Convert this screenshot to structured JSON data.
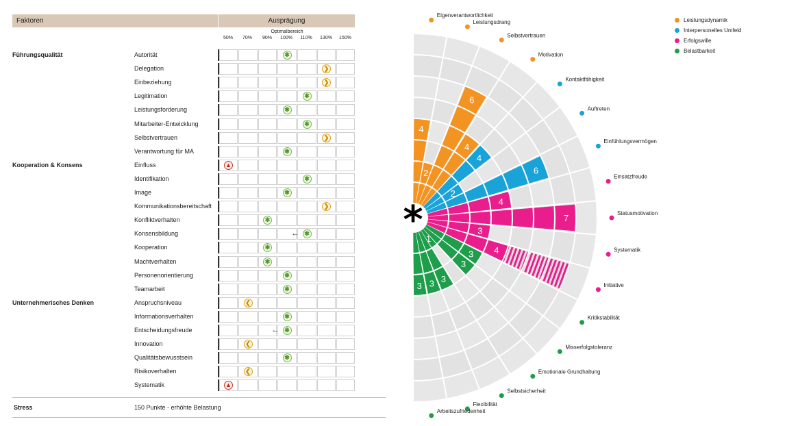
{
  "table": {
    "header_left": "Faktoren",
    "header_right": "Ausprägung",
    "optimal_label": "Optimalbereich",
    "ticks": [
      "50%",
      "70%",
      "90%",
      "100%",
      "110%",
      "130%",
      "150%"
    ],
    "rows": [
      {
        "group": "Führungsqualität",
        "factor": "Autorität",
        "column": 4,
        "marker": "star",
        "arrow": ""
      },
      {
        "group": "",
        "factor": "Delegation",
        "column": 6,
        "marker": "right",
        "arrow": ""
      },
      {
        "group": "",
        "factor": "Einbeziehung",
        "column": 6,
        "marker": "right",
        "arrow": ""
      },
      {
        "group": "",
        "factor": "Legitimation",
        "column": 5,
        "marker": "star",
        "arrow": ""
      },
      {
        "group": "",
        "factor": "Leistungsforderung",
        "column": 4,
        "marker": "star",
        "arrow": ""
      },
      {
        "group": "",
        "factor": "Mitarbeiter-Entwicklung",
        "column": 5,
        "marker": "star",
        "arrow": ""
      },
      {
        "group": "",
        "factor": "Selbstvertrauen",
        "column": 6,
        "marker": "right",
        "arrow": ""
      },
      {
        "group": "",
        "factor": "Verantwortung für MA",
        "column": 4,
        "marker": "star",
        "arrow": ""
      },
      {
        "group": "Kooperation & Konsens",
        "factor": "Einfluss",
        "column": 1,
        "marker": "up",
        "arrow": ""
      },
      {
        "group": "",
        "factor": "Identifikation",
        "column": 5,
        "marker": "star",
        "arrow": ""
      },
      {
        "group": "",
        "factor": "Image",
        "column": 4,
        "marker": "star",
        "arrow": ""
      },
      {
        "group": "",
        "factor": "Kommunikationsbereitschaft",
        "column": 6,
        "marker": "right",
        "arrow": ""
      },
      {
        "group": "",
        "factor": "Konfliktverhalten",
        "column": 3,
        "marker": "star",
        "arrow": ""
      },
      {
        "group": "",
        "factor": "Konsensbildung",
        "column": 5,
        "marker": "star",
        "arrow": "←"
      },
      {
        "group": "",
        "factor": "Kooperation",
        "column": 3,
        "marker": "star",
        "arrow": ""
      },
      {
        "group": "",
        "factor": "Machtverhalten",
        "column": 3,
        "marker": "star",
        "arrow": ""
      },
      {
        "group": "",
        "factor": "Personenorientierung",
        "column": 4,
        "marker": "star",
        "arrow": ""
      },
      {
        "group": "",
        "factor": "Teamarbeit",
        "column": 4,
        "marker": "star",
        "arrow": ""
      },
      {
        "group": "Unternehmerisches Denken",
        "factor": "Anspruchsniveau",
        "column": 2,
        "marker": "left",
        "arrow": ""
      },
      {
        "group": "",
        "factor": "Informationsverhalten",
        "column": 4,
        "marker": "star",
        "arrow": ""
      },
      {
        "group": "",
        "factor": "Entscheidungsfreude",
        "column": 4,
        "marker": "star",
        "arrow": "←"
      },
      {
        "group": "",
        "factor": "Innovation",
        "column": 2,
        "marker": "left",
        "arrow": ""
      },
      {
        "group": "",
        "factor": "Qualitätsbewusstsein",
        "column": 4,
        "marker": "star",
        "arrow": ""
      },
      {
        "group": "",
        "factor": "Risikoverhalten",
        "column": 2,
        "marker": "left",
        "arrow": ""
      },
      {
        "group": "",
        "factor": "Systematik",
        "column": 1,
        "marker": "up",
        "arrow": ""
      }
    ],
    "stress_label": "Stress",
    "stress_value": "150 Punkte - erhöhte Belastung"
  },
  "chart_data": {
    "type": "bar",
    "variant": "radial-half",
    "max": 8,
    "center_symbol": "*",
    "legend": [
      {
        "name": "Leistungsdynamik",
        "color": "#f39322"
      },
      {
        "name": "Interpersonelles Umfeld",
        "color": "#1aa3d9"
      },
      {
        "name": "Erfolgswille",
        "color": "#e91e8c"
      },
      {
        "name": "Belastbarkeit",
        "color": "#1e9e4b"
      }
    ],
    "categories": [
      {
        "label": "Eigenverantwortlichkeit",
        "group": 0,
        "value": 4,
        "shown": "4",
        "hatched": 0
      },
      {
        "label": "Leistungsdrang",
        "group": 0,
        "value": 2,
        "shown": "2",
        "hatched": 0
      },
      {
        "label": "Selbstvertrauen",
        "group": 0,
        "value": 6,
        "shown": "6",
        "hatched": 0
      },
      {
        "label": "Motivation",
        "group": 0,
        "value": 4,
        "shown": "4",
        "hatched": 0
      },
      {
        "label": "Kontaktfähigkeit",
        "group": 1,
        "value": 4,
        "shown": "4",
        "hatched": 0
      },
      {
        "label": "Auftreten",
        "group": 1,
        "value": 2,
        "shown": "2",
        "hatched": 0
      },
      {
        "label": "Einfühlungsvermögen",
        "group": 1,
        "value": 6,
        "shown": "6",
        "hatched": 0
      },
      {
        "label": "Einsatzfreude",
        "group": 2,
        "value": 4,
        "shown": "4",
        "hatched": 0
      },
      {
        "label": "Statusmotivation",
        "group": 2,
        "value": 7,
        "shown": "7",
        "hatched": 0
      },
      {
        "label": "Systematik",
        "group": 2,
        "value": 3,
        "shown": "3",
        "hatched": 0
      },
      {
        "label": "Initiative",
        "group": 2,
        "value": 4,
        "shown": "4",
        "hatched": 3
      },
      {
        "label": "Kritikstabilität",
        "group": 3,
        "value": 3,
        "shown": "3",
        "hatched": 0
      },
      {
        "label": "Misserfolgstoleranz",
        "group": 3,
        "value": 3,
        "shown": "3",
        "hatched": 0
      },
      {
        "label": "Emotionale Grundhaltung",
        "group": 3,
        "value": 1,
        "shown": "1",
        "hatched": 0
      },
      {
        "label": "Selbstsicherheit",
        "group": 3,
        "value": 3,
        "shown": "3",
        "hatched": 0
      },
      {
        "label": "Flexibilität",
        "group": 3,
        "value": 3,
        "shown": "3",
        "hatched": 0
      },
      {
        "label": "Arbeitszufriedenheit",
        "group": 3,
        "value": 3,
        "shown": "3",
        "hatched": 0
      }
    ]
  }
}
